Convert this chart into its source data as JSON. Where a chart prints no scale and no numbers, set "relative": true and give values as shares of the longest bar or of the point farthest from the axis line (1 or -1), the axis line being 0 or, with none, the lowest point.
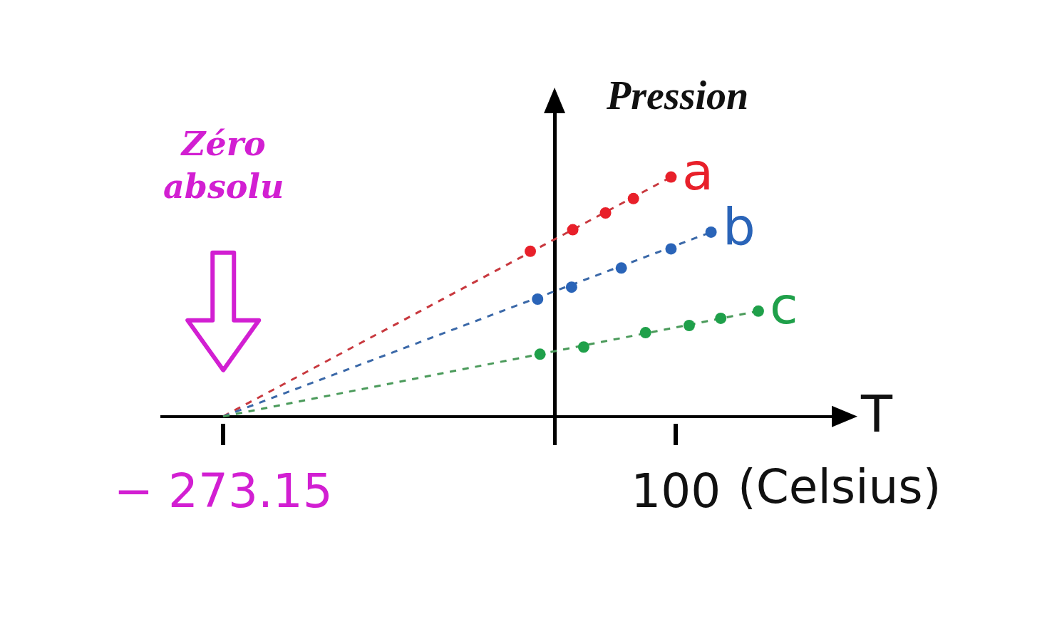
{
  "chart_data": {
    "type": "scatter",
    "relative": true,
    "ylabel": "Pression",
    "xlabel": "T",
    "annotations": [
      "Zéro absolu",
      "(Celsius)"
    ],
    "xlim": [
      -325,
      245
    ],
    "xticks": [
      {
        "value": -273.15,
        "label": "− 273.15"
      },
      {
        "value": 100,
        "label": "100"
      }
    ],
    "marker": "circle",
    "line_style": "dashed",
    "legend": false,
    "grid": false,
    "series": [
      {
        "name": "a",
        "color": "#e8202a",
        "x": [
          -20,
          15,
          42,
          65,
          96
        ],
        "values": [
          0.69,
          0.78,
          0.85,
          0.91,
          1
        ]
      },
      {
        "name": "b",
        "color": "#2a64b8",
        "x": [
          -14,
          14,
          55,
          96,
          129
        ],
        "values": [
          0.49,
          0.54,
          0.62,
          0.7,
          0.77
        ]
      },
      {
        "name": "c",
        "color": "#1fa04a",
        "x": [
          -12,
          24,
          75,
          111,
          137,
          168
        ],
        "values": [
          0.26,
          0.29,
          0.35,
          0.38,
          0.41,
          0.44
        ]
      },
      {
        "type": "line",
        "marker": "none",
        "color": "#c8383e",
        "x": [
          -273.15,
          96
        ],
        "values": [
          0,
          1
        ]
      },
      {
        "type": "line",
        "marker": "none",
        "color": "#3a68a8",
        "x": [
          -273.15,
          129
        ],
        "values": [
          0,
          0.77
        ]
      },
      {
        "type": "line",
        "marker": "none",
        "color": "#4a9a5a",
        "x": [
          -273.15,
          168
        ],
        "values": [
          0,
          0.44
        ]
      }
    ]
  }
}
